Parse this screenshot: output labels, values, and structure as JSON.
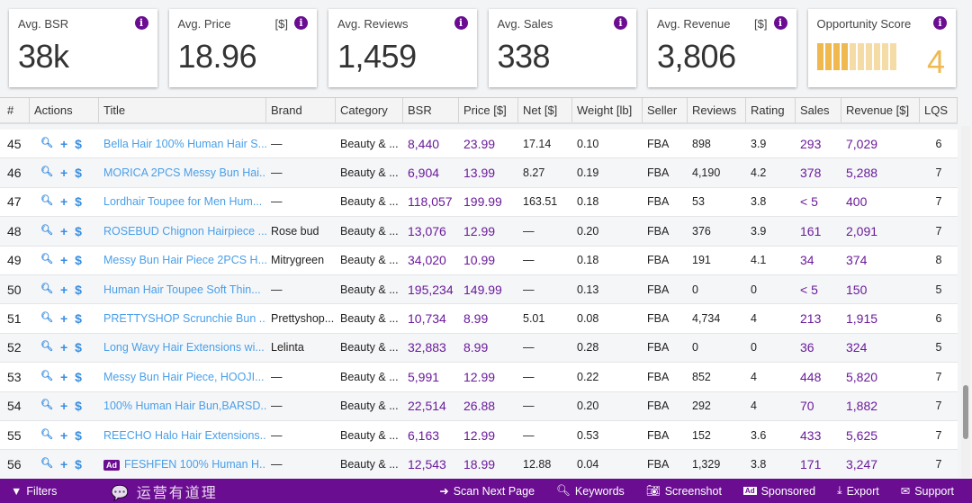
{
  "cards": [
    {
      "label": "Avg. BSR",
      "unit": "",
      "value": "38k"
    },
    {
      "label": "Avg. Price",
      "unit": "[$]",
      "value": "18.96"
    },
    {
      "label": "Avg. Reviews",
      "unit": "",
      "value": "1,459"
    },
    {
      "label": "Avg. Sales",
      "unit": "",
      "value": "338"
    },
    {
      "label": "Avg. Revenue",
      "unit": "[$]",
      "value": "3,806"
    }
  ],
  "opportunity": {
    "label": "Opportunity Score",
    "value": "4",
    "score_fraction": 0.4
  },
  "columns": [
    "#",
    "Actions",
    "Title",
    "Brand",
    "Category",
    "BSR",
    "Price [$]",
    "Net [$]",
    "Weight [lb]",
    "Seller",
    "Reviews",
    "Rating",
    "Sales",
    "Revenue [$]",
    "LQS"
  ],
  "rows": [
    {
      "n": "45",
      "title": "Bella Hair 100% Human Hair S...",
      "brand": "—",
      "cat": "Beauty & ...",
      "bsr": "8,440",
      "price": "23.99",
      "net": "17.14",
      "weight": "0.10",
      "seller": "FBA",
      "reviews": "898",
      "rating": "3.9",
      "sales": "293",
      "revenue": "7,029",
      "lqs": "6"
    },
    {
      "n": "46",
      "title": "MORICA 2PCS Messy Bun Hai...",
      "brand": "—",
      "cat": "Beauty & ...",
      "bsr": "6,904",
      "price": "13.99",
      "net": "8.27",
      "weight": "0.19",
      "seller": "FBA",
      "reviews": "4,190",
      "rating": "4.2",
      "sales": "378",
      "revenue": "5,288",
      "lqs": "7"
    },
    {
      "n": "47",
      "title": "Lordhair Toupee for Men Hum...",
      "brand": "—",
      "cat": "Beauty & ...",
      "bsr": "118,057",
      "price": "199.99",
      "net": "163.51",
      "weight": "0.18",
      "seller": "FBA",
      "reviews": "53",
      "rating": "3.8",
      "sales": "< 5",
      "revenue": "400",
      "lqs": "7"
    },
    {
      "n": "48",
      "title": "ROSEBUD Chignon Hairpiece ...",
      "brand": "Rose bud",
      "cat": "Beauty & ...",
      "bsr": "13,076",
      "price": "12.99",
      "net": "—",
      "weight": "0.20",
      "seller": "FBA",
      "reviews": "376",
      "rating": "3.9",
      "sales": "161",
      "revenue": "2,091",
      "lqs": "7"
    },
    {
      "n": "49",
      "title": "Messy Bun Hair Piece 2PCS H...",
      "brand": "Mitrygreen",
      "cat": "Beauty & ...",
      "bsr": "34,020",
      "price": "10.99",
      "net": "—",
      "weight": "0.18",
      "seller": "FBA",
      "reviews": "191",
      "rating": "4.1",
      "sales": "34",
      "revenue": "374",
      "lqs": "8"
    },
    {
      "n": "50",
      "title": "Human Hair Toupee Soft Thin...",
      "brand": "—",
      "cat": "Beauty & ...",
      "bsr": "195,234",
      "price": "149.99",
      "net": "—",
      "weight": "0.13",
      "seller": "FBA",
      "reviews": "0",
      "rating": "0",
      "sales": "< 5",
      "revenue": "150",
      "lqs": "5"
    },
    {
      "n": "51",
      "title": "PRETTYSHOP Scrunchie Bun ...",
      "brand": "Prettyshop...",
      "cat": "Beauty & ...",
      "bsr": "10,734",
      "price": "8.99",
      "net": "5.01",
      "weight": "0.08",
      "seller": "FBA",
      "reviews": "4,734",
      "rating": "4",
      "sales": "213",
      "revenue": "1,915",
      "lqs": "6"
    },
    {
      "n": "52",
      "title": "Long Wavy Hair Extensions wi...",
      "brand": "Lelinta",
      "cat": "Beauty & ...",
      "bsr": "32,883",
      "price": "8.99",
      "net": "—",
      "weight": "0.28",
      "seller": "FBA",
      "reviews": "0",
      "rating": "0",
      "sales": "36",
      "revenue": "324",
      "lqs": "5"
    },
    {
      "n": "53",
      "title": "Messy Bun Hair Piece, HOOJI...",
      "brand": "—",
      "cat": "Beauty & ...",
      "bsr": "5,991",
      "price": "12.99",
      "net": "—",
      "weight": "0.22",
      "seller": "FBA",
      "reviews": "852",
      "rating": "4",
      "sales": "448",
      "revenue": "5,820",
      "lqs": "7"
    },
    {
      "n": "54",
      "title": "100% Human Hair Bun,BARSD...",
      "brand": "—",
      "cat": "Beauty & ...",
      "bsr": "22,514",
      "price": "26.88",
      "net": "—",
      "weight": "0.20",
      "seller": "FBA",
      "reviews": "292",
      "rating": "4",
      "sales": "70",
      "revenue": "1,882",
      "lqs": "7"
    },
    {
      "n": "55",
      "title": "REECHO Halo Hair Extensions...",
      "brand": "—",
      "cat": "Beauty & ...",
      "bsr": "6,163",
      "price": "12.99",
      "net": "—",
      "weight": "0.53",
      "seller": "FBA",
      "reviews": "152",
      "rating": "3.6",
      "sales": "433",
      "revenue": "5,625",
      "lqs": "7"
    },
    {
      "n": "56",
      "ad": "Ad",
      "title": "FESHFEN 100% Human H...",
      "brand": "—",
      "cat": "Beauty & ...",
      "bsr": "12,543",
      "price": "18.99",
      "net": "12.88",
      "weight": "0.04",
      "seller": "FBA",
      "reviews": "1,329",
      "rating": "3.8",
      "sales": "171",
      "revenue": "3,247",
      "lqs": "7"
    }
  ],
  "footer": {
    "filters": "Filters",
    "scan": "Scan Next Page",
    "keywords": "Keywords",
    "screenshot": "Screenshot",
    "sponsored": "Sponsored",
    "export": "Export",
    "support": "Support"
  },
  "watermark": "运营有道理"
}
